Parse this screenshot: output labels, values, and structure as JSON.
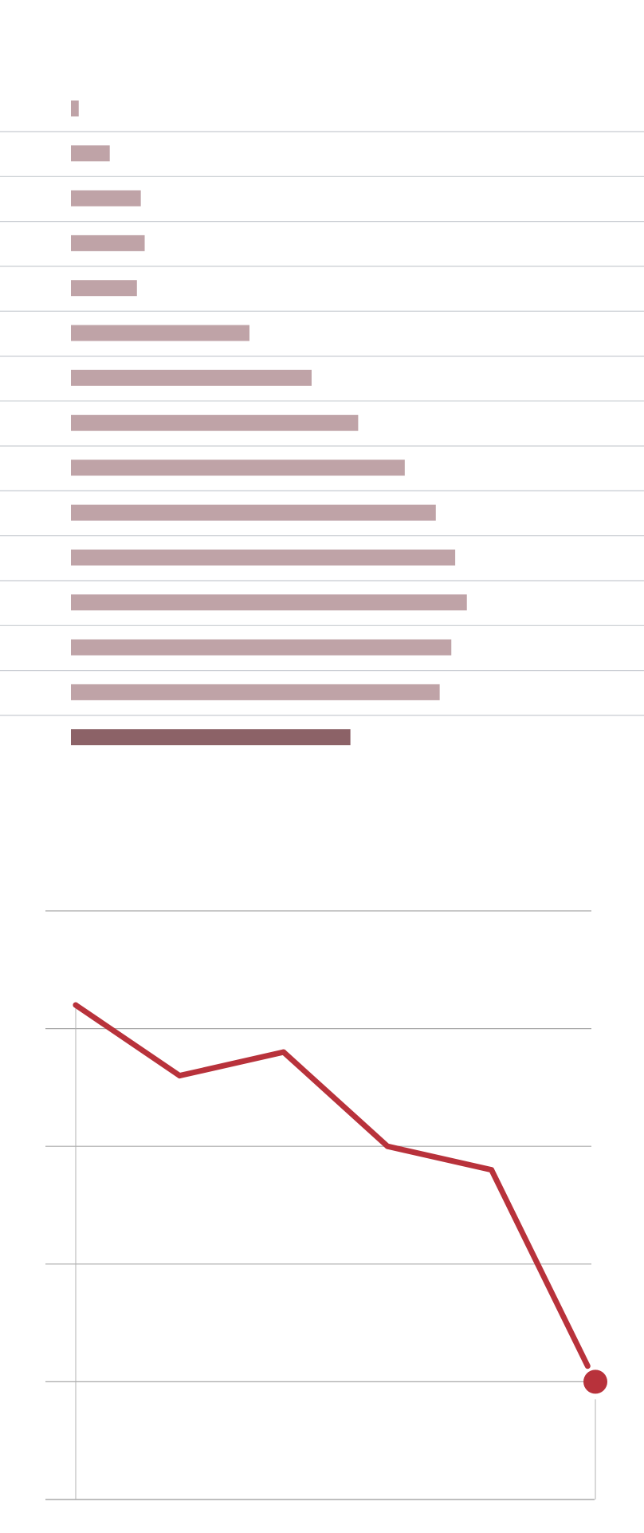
{
  "chart_data": [
    {
      "type": "bar",
      "orientation": "horizontal",
      "categories": [
        "",
        "",
        "",
        "",
        "",
        "",
        "",
        "",
        "",
        "",
        "",
        "",
        "",
        "",
        ""
      ],
      "values": [
        2,
        10,
        18,
        19,
        17,
        46,
        62,
        74,
        86,
        94,
        99,
        102,
        98,
        95,
        72
      ],
      "highlight_index": 14,
      "colors": {
        "bar": "#bfa3a7",
        "highlight": "#8c6267",
        "divider": "#c7cbd1"
      },
      "grid": true,
      "title": "",
      "xlabel": "",
      "ylabel": ""
    },
    {
      "type": "line",
      "x": [
        0,
        1,
        2,
        3,
        4,
        5
      ],
      "series": [
        {
          "values": [
            4.2,
            3.6,
            3.8,
            3.0,
            2.8,
            1.0
          ]
        }
      ],
      "ylim": [
        0,
        5
      ],
      "grid": true,
      "end_marker": true,
      "colors": {
        "line": "#b8323b",
        "grid": "#a8a8a8",
        "axis": "#b0b0b0"
      },
      "title": "",
      "xlabel": "",
      "ylabel": ""
    }
  ]
}
